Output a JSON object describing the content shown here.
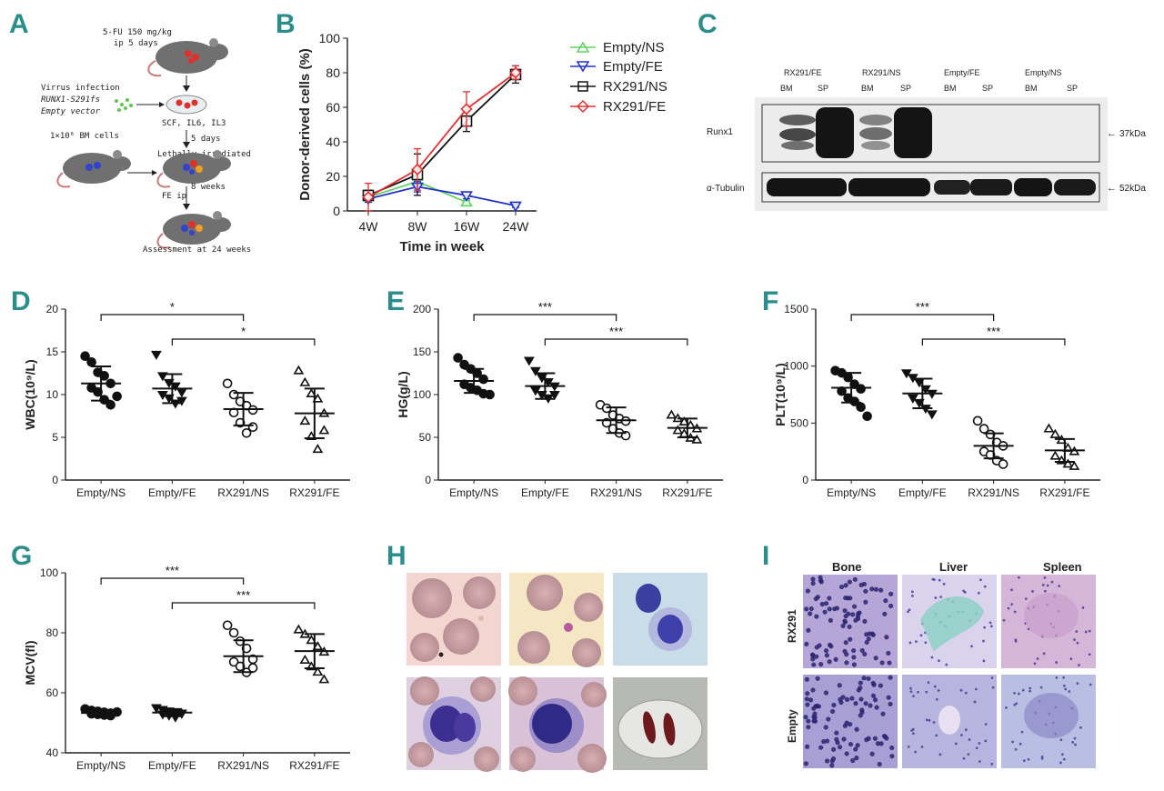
{
  "panel_labels": [
    "A",
    "B",
    "C",
    "D",
    "E",
    "F",
    "G",
    "H",
    "I"
  ],
  "schematic": {
    "treatment": [
      "5-FU 150 mg/kg",
      "ip 5 days"
    ],
    "virus": [
      "Virrus infection",
      "RUNX1-S291fs",
      "Empty vector"
    ],
    "culture": "SCF, IL6, IL3",
    "days": "5 days",
    "bm_cells": "1×10⁶ BM cells",
    "irradiated": "Lethally irradiated",
    "weeks": "8 weeks",
    "fe": "FE ip",
    "assessment": "Assessment at 24 weeks"
  },
  "western": {
    "groups": [
      "RX291/FE",
      "RX291/NS",
      "Empty/FE",
      "Empty/NS"
    ],
    "lanes": [
      "BM",
      "SP",
      "BM",
      "SP",
      "BM",
      "SP",
      "BM",
      "SP"
    ],
    "row1": "Runx1",
    "row2": "α-Tubulin",
    "mw1": "37kDa",
    "mw2": "52kDa",
    "arrow": "←"
  },
  "histology": {
    "col_labels": [
      "Bone",
      "Liver",
      "Spleen"
    ],
    "row_labels": [
      "RX291",
      "Empty"
    ]
  },
  "colors": {
    "accent": "#2a8e8a",
    "green": "#5fd35f",
    "blue": "#2233cc",
    "black": "#111111",
    "red": "#e53030"
  },
  "chart_data": [
    {
      "id": "B",
      "type": "line",
      "categories": [
        "4W",
        "8W",
        "16W",
        "24W"
      ],
      "xlabel": "Time in week",
      "ylabel": "Donor-derived cells (%)",
      "ylim": [
        0,
        100
      ],
      "yticks": [
        0,
        20,
        40,
        60,
        80,
        100
      ],
      "series": [
        {
          "name": "Empty/NS",
          "marker": "triangle-up",
          "color": "#5fd35f",
          "values": [
            8,
            17,
            5,
            null
          ],
          "err": [
            2,
            3,
            1,
            0
          ]
        },
        {
          "name": "Empty/FE",
          "marker": "triangle-down",
          "color": "#2233cc",
          "values": [
            7,
            14,
            9,
            3
          ],
          "err": [
            2,
            3,
            2,
            1
          ]
        },
        {
          "name": "RX291/NS",
          "marker": "square",
          "color": "#111111",
          "values": [
            9,
            21,
            52,
            79
          ],
          "err": [
            3,
            12,
            6,
            5
          ]
        },
        {
          "name": "RX291/FE",
          "marker": "diamond",
          "color": "#e53030",
          "values": [
            8,
            24,
            59,
            80
          ],
          "err": [
            8,
            12,
            10,
            4
          ]
        }
      ]
    },
    {
      "id": "D",
      "type": "scatter",
      "ylabel": "WBC(10⁹/L)",
      "ylim": [
        0,
        20
      ],
      "yticks": [
        0,
        5,
        10,
        15,
        20
      ],
      "categories": [
        "Empty/NS",
        "Empty/FE",
        "RX291/NS",
        "RX291/FE"
      ],
      "markers": [
        "circle-filled",
        "triangle-down-filled",
        "circle-open",
        "triangle-open"
      ],
      "means": [
        11.3,
        10.7,
        8.3,
        7.8
      ],
      "sds": [
        2.0,
        1.7,
        1.9,
        2.9
      ],
      "points": [
        [
          14.5,
          13.8,
          12.6,
          12.2,
          11.3,
          10.8,
          10.3,
          9.4,
          8.8,
          9.8
        ],
        [
          14.7,
          12.2,
          11.4,
          11.0,
          10.3,
          10.0,
          9.6,
          9.0,
          9.3
        ],
        [
          11.3,
          10.0,
          9.2,
          8.7,
          8.2,
          7.9,
          6.7,
          5.5,
          6.2
        ],
        [
          12.8,
          11.4,
          10.1,
          9.5,
          7.8,
          6.9,
          5.1,
          3.6,
          5.8
        ]
      ],
      "significance": [
        {
          "from": 0,
          "to": 2,
          "label": "*"
        },
        {
          "from": 1,
          "to": 3,
          "label": "*"
        }
      ]
    },
    {
      "id": "E",
      "type": "scatter",
      "ylabel": "HG(g/L)",
      "ylim": [
        0,
        200
      ],
      "yticks": [
        0,
        50,
        100,
        150,
        200
      ],
      "categories": [
        "Empty/NS",
        "Empty/FE",
        "RX291/NS",
        "RX291/FE"
      ],
      "markers": [
        "circle-filled",
        "triangle-down-filled",
        "circle-open",
        "triangle-open"
      ],
      "means": [
        116,
        110,
        70,
        61
      ],
      "sds": [
        14,
        15,
        15,
        11
      ],
      "points": [
        [
          143,
          135,
          130,
          125,
          118,
          112,
          108,
          105,
          101,
          100
        ],
        [
          140,
          128,
          120,
          115,
          110,
          105,
          100,
          96,
          100
        ],
        [
          88,
          84,
          76,
          72,
          69,
          67,
          60,
          55,
          52
        ],
        [
          76,
          72,
          68,
          64,
          60,
          58,
          54,
          49,
          47
        ]
      ],
      "significance": [
        {
          "from": 0,
          "to": 2,
          "label": "***"
        },
        {
          "from": 1,
          "to": 3,
          "label": "***"
        }
      ]
    },
    {
      "id": "F",
      "type": "scatter",
      "ylabel": "PLT(10⁹/L)",
      "ylim": [
        0,
        1500
      ],
      "yticks": [
        0,
        500,
        1000,
        1500
      ],
      "categories": [
        "Empty/NS",
        "Empty/FE",
        "RX291/NS",
        "RX291/FE"
      ],
      "markers": [
        "circle-filled",
        "triangle-down-filled",
        "circle-open",
        "triangle-open"
      ],
      "means": [
        810,
        760,
        300,
        260
      ],
      "sds": [
        130,
        130,
        110,
        100
      ],
      "points": [
        [
          960,
          940,
          900,
          840,
          800,
          780,
          720,
          690,
          640,
          560
        ],
        [
          940,
          900,
          860,
          800,
          760,
          720,
          680,
          630,
          580
        ],
        [
          520,
          450,
          400,
          330,
          300,
          250,
          220,
          170,
          140
        ],
        [
          450,
          400,
          350,
          280,
          250,
          210,
          170,
          140,
          120
        ]
      ],
      "significance": [
        {
          "from": 0,
          "to": 2,
          "label": "***"
        },
        {
          "from": 1,
          "to": 3,
          "label": "***"
        }
      ]
    },
    {
      "id": "G",
      "type": "scatter",
      "ylabel": "MCV(fl)",
      "ylim": [
        40,
        100
      ],
      "yticks": [
        40,
        60,
        80,
        100
      ],
      "categories": [
        "Empty/NS",
        "Empty/FE",
        "RX291/NS",
        "RX291/FE"
      ],
      "markers": [
        "circle-filled",
        "triangle-down-filled",
        "circle-open",
        "triangle-open"
      ],
      "means": [
        53.3,
        53.4,
        72.2,
        73.9
      ],
      "sds": [
        0.8,
        1.2,
        5.3,
        5.7
      ],
      "points": [
        [
          54.6,
          54.1,
          53.8,
          53.5,
          53.2,
          53.0,
          52.8,
          52.6,
          52.4,
          53.6
        ],
        [
          55.0,
          54.4,
          53.9,
          53.5,
          53.2,
          52.9,
          52.5,
          51.9,
          53.1
        ],
        [
          82.5,
          80.0,
          77.2,
          74.8,
          71.2,
          70.3,
          68.8,
          66.8,
          68.3
        ],
        [
          81.0,
          79.5,
          77.5,
          75.4,
          73.6,
          70.9,
          68.7,
          66.9,
          64.4
        ]
      ],
      "significance": [
        {
          "from": 0,
          "to": 2,
          "label": "***"
        },
        {
          "from": 1,
          "to": 3,
          "label": "***"
        }
      ]
    }
  ]
}
